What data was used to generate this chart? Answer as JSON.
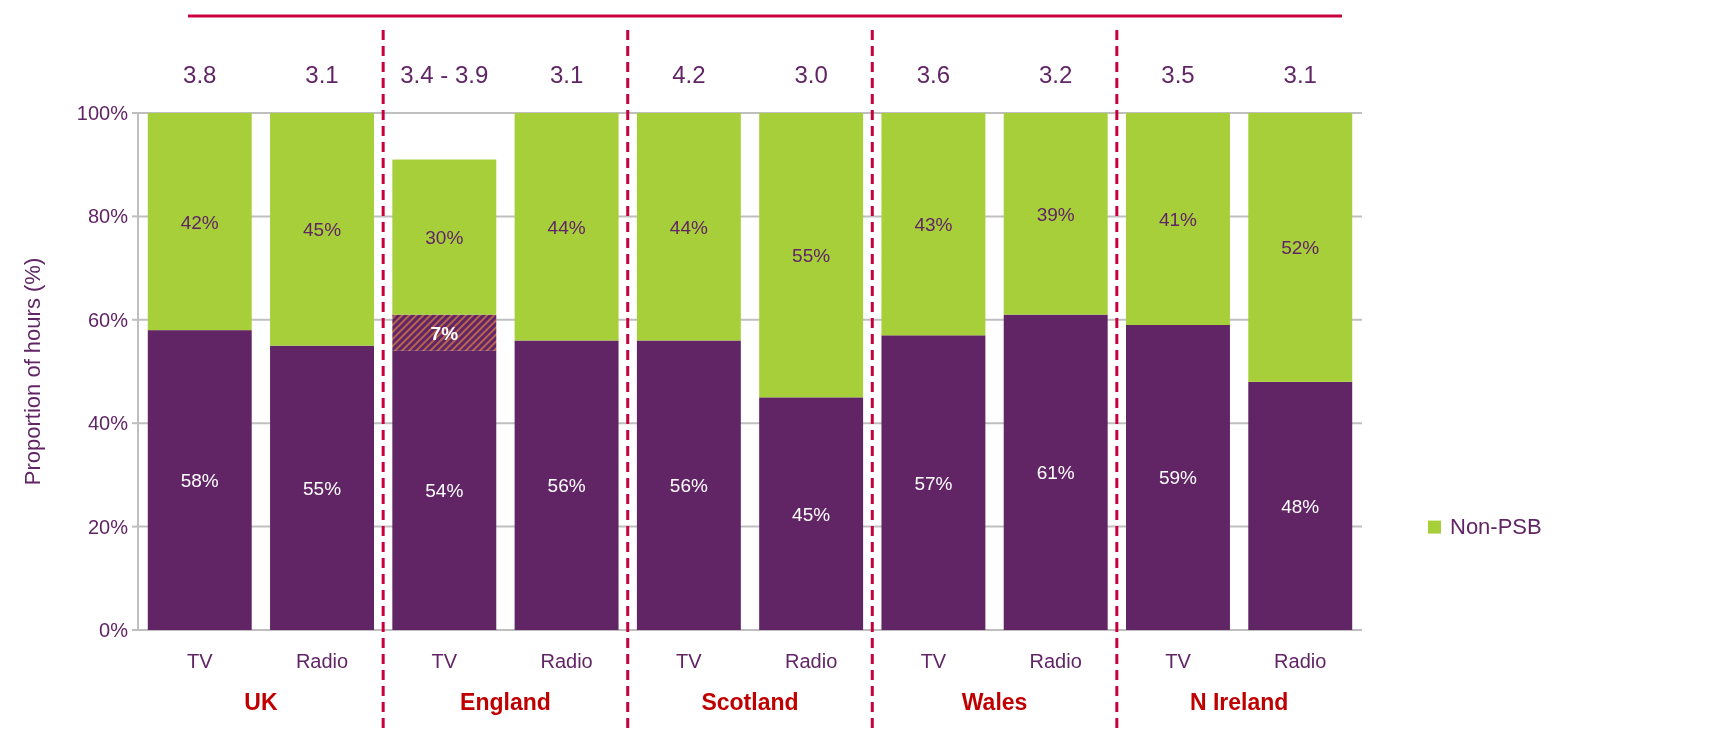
{
  "chart_data": {
    "type": "bar",
    "stacked": true,
    "categories": [
      "TV",
      "Radio",
      "TV",
      "Radio",
      "TV",
      "Radio",
      "TV",
      "Radio",
      "TV",
      "Radio"
    ],
    "series": [
      {
        "color": "#612566",
        "values": [
          58,
          55,
          54,
          56,
          56,
          45,
          57,
          61,
          59,
          48
        ],
        "value_labels": [
          "58%",
          "55%",
          "54%",
          "56%",
          "56%",
          "45%",
          "57%",
          "61%",
          "59%",
          "48%"
        ]
      },
      {
        "color": "#b5654f",
        "values": [
          null,
          null,
          7,
          null,
          null,
          null,
          null,
          null,
          null,
          null
        ],
        "value_labels": [
          null,
          null,
          "7%",
          null,
          null,
          null,
          null,
          null,
          null,
          null
        ]
      },
      {
        "name": "Non-PSB",
        "color": "#a6cf39",
        "values": [
          42,
          45,
          30,
          44,
          44,
          55,
          43,
          39,
          41,
          52
        ],
        "value_labels": [
          "42%",
          "45%",
          "30%",
          "44%",
          "44%",
          "55%",
          "43%",
          "39%",
          "41%",
          "52%"
        ]
      }
    ],
    "annotations": [
      "3.8",
      "3.1",
      "3.4 - 3.9",
      "3.1",
      "4.2",
      "3.0",
      "3.6",
      "3.2",
      "3.5",
      "3.1",
      "UK",
      "England",
      "Scotland",
      "Wales",
      "N Ireland"
    ],
    "ylabel": "Proportion of hours (%)",
    "ylim": [
      0,
      100
    ],
    "yticks": [
      {
        "value": 0,
        "label": "0%"
      },
      {
        "value": 20,
        "label": "20%"
      },
      {
        "value": 40,
        "label": "40%"
      },
      {
        "value": 60,
        "label": "60%"
      },
      {
        "value": 80,
        "label": "80%"
      },
      {
        "value": 100,
        "label": "100%"
      }
    ],
    "grid": "y",
    "legend": "right"
  }
}
